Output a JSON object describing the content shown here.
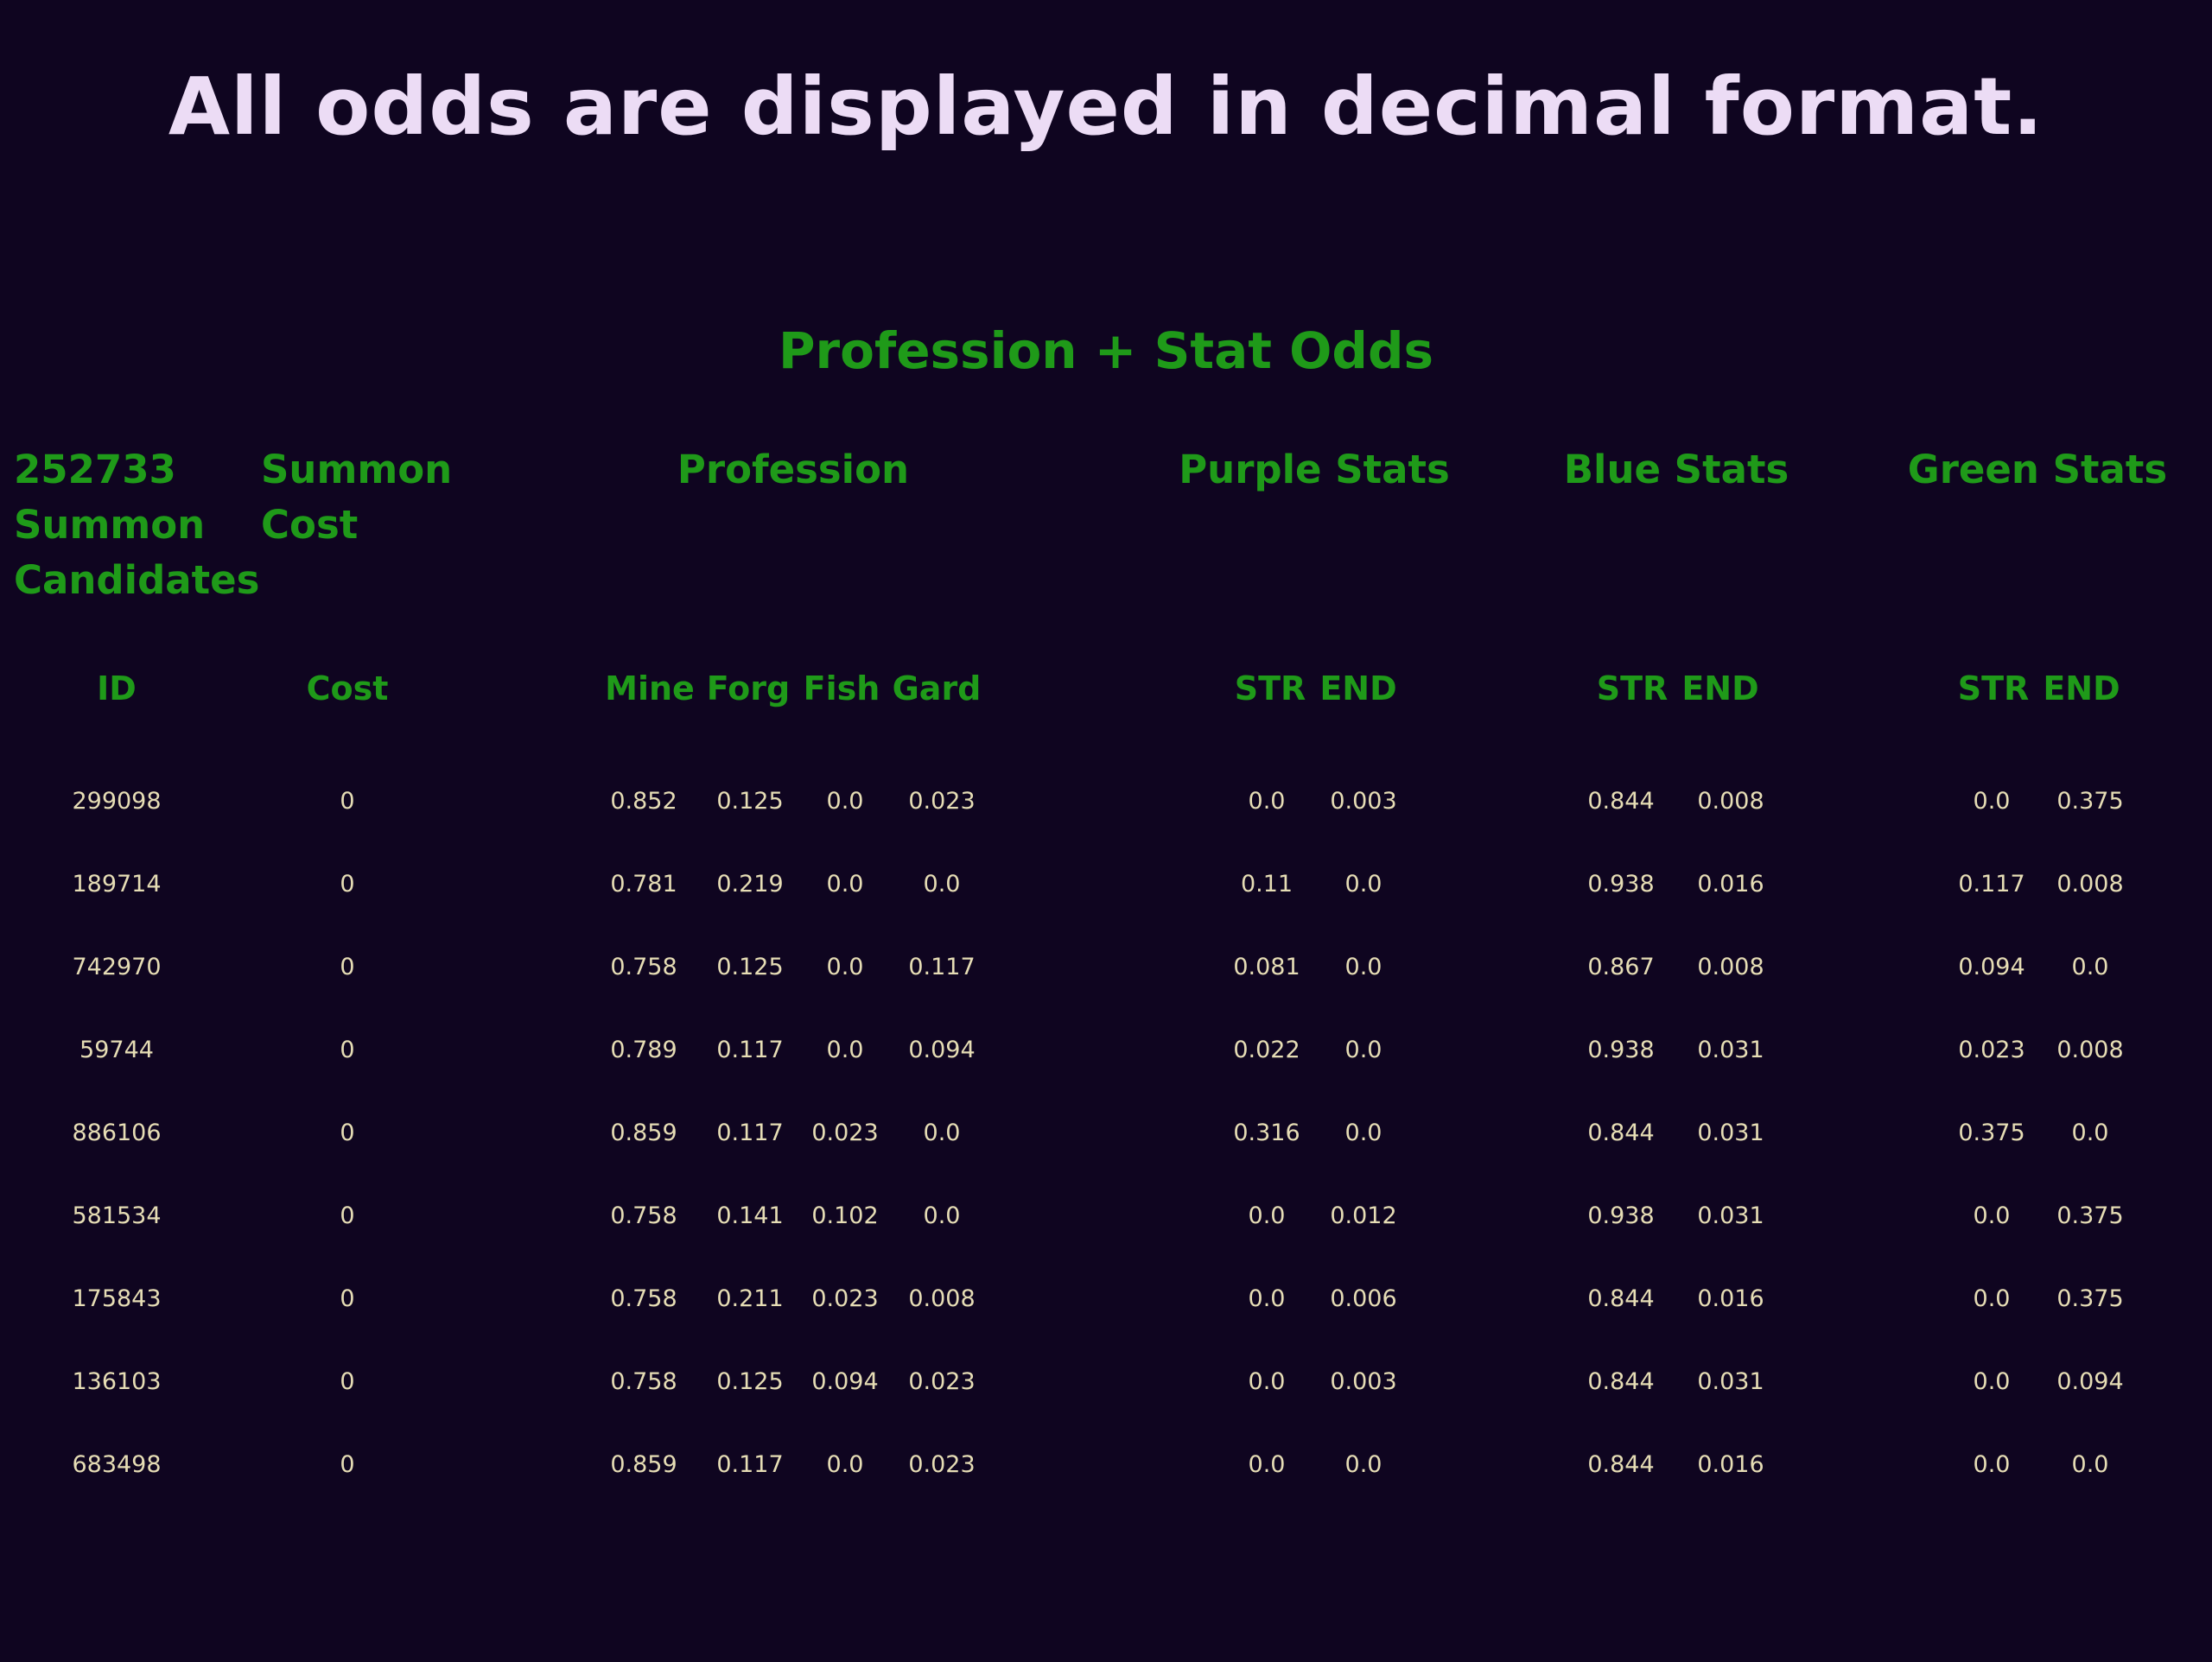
{
  "notice": "All odds are displayed in decimal format.",
  "section_title": "Profession + Stat Odds",
  "groups": {
    "candidates": [
      "252733",
      "Summon",
      "Candidates"
    ],
    "cost": [
      "Summon",
      "Cost"
    ],
    "profession": "Profession",
    "purple": "Purple Stats",
    "blue": "Blue Stats",
    "green": "Green Stats"
  },
  "subheaders": {
    "id": "ID",
    "cost": "Cost",
    "mine": "Mine",
    "forg": "Forg",
    "fish": "Fish",
    "gard": "Gard",
    "purple_str": "STR",
    "purple_end": "END",
    "blue_str": "STR",
    "blue_end": "END",
    "green_str": "STR",
    "green_end": "END"
  },
  "rows": [
    [
      "299098",
      "0",
      "0.852",
      "0.125",
      "0.0",
      "0.023",
      "0.0",
      "0.003",
      "0.844",
      "0.008",
      "0.0",
      "0.375"
    ],
    [
      "189714",
      "0",
      "0.781",
      "0.219",
      "0.0",
      "0.0",
      "0.11",
      "0.0",
      "0.938",
      "0.016",
      "0.117",
      "0.008"
    ],
    [
      "742970",
      "0",
      "0.758",
      "0.125",
      "0.0",
      "0.117",
      "0.081",
      "0.0",
      "0.867",
      "0.008",
      "0.094",
      "0.0"
    ],
    [
      "59744",
      "0",
      "0.789",
      "0.117",
      "0.0",
      "0.094",
      "0.022",
      "0.0",
      "0.938",
      "0.031",
      "0.023",
      "0.008"
    ],
    [
      "886106",
      "0",
      "0.859",
      "0.117",
      "0.023",
      "0.0",
      "0.316",
      "0.0",
      "0.844",
      "0.031",
      "0.375",
      "0.0"
    ],
    [
      "581534",
      "0",
      "0.758",
      "0.141",
      "0.102",
      "0.0",
      "0.0",
      "0.012",
      "0.938",
      "0.031",
      "0.0",
      "0.375"
    ],
    [
      "175843",
      "0",
      "0.758",
      "0.211",
      "0.023",
      "0.008",
      "0.0",
      "0.006",
      "0.844",
      "0.016",
      "0.0",
      "0.375"
    ],
    [
      "136103",
      "0",
      "0.758",
      "0.125",
      "0.094",
      "0.023",
      "0.0",
      "0.003",
      "0.844",
      "0.031",
      "0.0",
      "0.094"
    ],
    [
      "683498",
      "0",
      "0.859",
      "0.117",
      "0.0",
      "0.023",
      "0.0",
      "0.0",
      "0.844",
      "0.016",
      "0.0",
      "0.0"
    ]
  ]
}
